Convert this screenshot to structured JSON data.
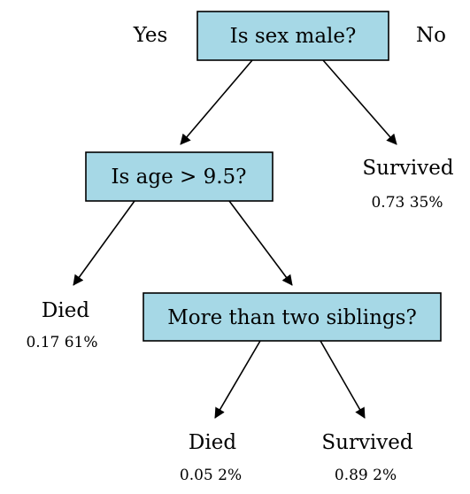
{
  "branch_labels": {
    "yes": "Yes",
    "no": "No"
  },
  "nodes": {
    "root": {
      "question": "Is sex male?"
    },
    "age": {
      "question": "Is age > 9.5?"
    },
    "siblings": {
      "question": "More than two siblings?"
    }
  },
  "leaves": {
    "survived_female": {
      "outcome": "Survived",
      "stats": "0.73 35%"
    },
    "died_child": {
      "outcome": "Died",
      "stats": "0.17 61%"
    },
    "died_siblings": {
      "outcome": "Died",
      "stats": "0.05 2%"
    },
    "survived_siblings": {
      "outcome": "Survived",
      "stats": "0.89 2%"
    }
  },
  "colors": {
    "node_fill": "#a6d8e6",
    "line": "#000000"
  }
}
